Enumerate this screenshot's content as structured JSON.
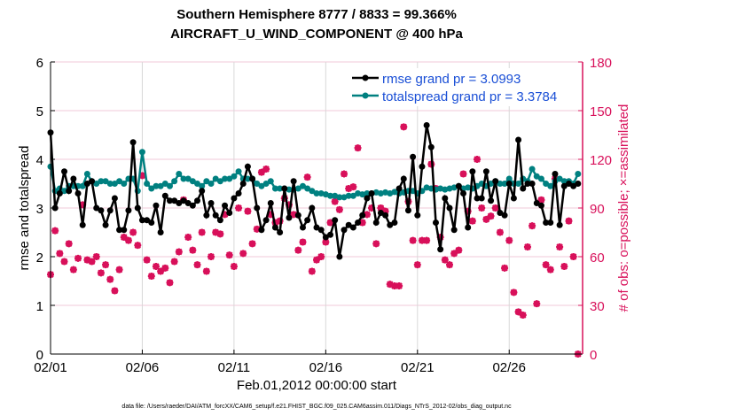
{
  "chart_data": {
    "type": "line",
    "title": [
      "Southern Hemisphere 8777 / 8833 = 99.366%",
      "AIRCRAFT_U_WIND_COMPONENT @ 400 hPa"
    ],
    "xlabel": "Feb.01,2012 00:00:00 start",
    "ylabel": "rmse and totalspread",
    "ylabel_right": "# of obs: o=possible; ×=assimilated",
    "footer": "data file: /Users/raeder/DAI/ATM_forcXX/CAM6_setup/f.e21.FHIST_BGC.f09_025.CAM6assim.011/Diags_NTrS_2012-02/obs_diag_output.nc",
    "xlim_days": [
      0,
      29
    ],
    "xticks": [
      "02/01",
      "02/06",
      "02/11",
      "02/16",
      "02/21",
      "02/26"
    ],
    "xtick_days": [
      0,
      5,
      10,
      15,
      20,
      25
    ],
    "ylim": [
      0,
      6
    ],
    "yticks": [
      "0",
      "1",
      "2",
      "3",
      "4",
      "5",
      "6"
    ],
    "ylim_right": [
      0,
      180
    ],
    "yticks_right": [
      "0",
      "30",
      "60",
      "90",
      "120",
      "150",
      "180"
    ],
    "grid": true,
    "legend_placement": "top-right",
    "time_step_days": 0.25,
    "colors": {
      "rmse": "#000000",
      "totalspread": "#008080",
      "obs": "#d8105a"
    },
    "series": [
      {
        "name": "rmse grand pr = 3.0993",
        "values": [
          4.55,
          3.0,
          3.3,
          3.75,
          3.35,
          3.6,
          3.3,
          2.65,
          3.5,
          3.55,
          3.0,
          2.95,
          2.65,
          2.95,
          3.2,
          2.55,
          2.55,
          2.95,
          4.35,
          3.0,
          2.75,
          2.75,
          2.7,
          3.05,
          2.5,
          3.25,
          3.15,
          3.15,
          3.1,
          3.15,
          3.1,
          3.05,
          3.15,
          3.35,
          2.85,
          3.1,
          2.85,
          2.75,
          3.05,
          2.9,
          3.2,
          3.3,
          3.5,
          3.85,
          3.6,
          3.0,
          2.55,
          2.75,
          3.1,
          2.6,
          2.5,
          3.4,
          2.8,
          3.55,
          2.85,
          2.6,
          2.75,
          3.0,
          2.6,
          2.55,
          2.4,
          2.45,
          2.75,
          2.0,
          2.55,
          2.65,
          2.6,
          2.7,
          2.85,
          3.2,
          3.3,
          2.7,
          2.9,
          2.85,
          2.65,
          2.7,
          3.4,
          3.6,
          2.95,
          4.05,
          2.85,
          3.85,
          4.7,
          4.25,
          2.7,
          2.15,
          3.2,
          3.0,
          2.55,
          3.45,
          3.3,
          2.6,
          3.75,
          3.2,
          3.2,
          3.75,
          3.15,
          3.55,
          2.9,
          2.85,
          3.5,
          3.2,
          4.4,
          3.4,
          3.5,
          3.5,
          3.1,
          3.05,
          2.7,
          2.7,
          3.7,
          2.65,
          3.45,
          3.5,
          3.45,
          3.5
        ]
      },
      {
        "name": "totalspread grand pr = 3.3784",
        "values": [
          3.85,
          3.35,
          3.4,
          3.35,
          3.45,
          3.45,
          3.45,
          3.45,
          3.7,
          3.55,
          3.5,
          3.55,
          3.55,
          3.5,
          3.5,
          3.55,
          3.5,
          3.6,
          3.6,
          3.35,
          4.15,
          3.5,
          3.4,
          3.45,
          3.45,
          3.5,
          3.45,
          3.55,
          3.7,
          3.6,
          3.6,
          3.55,
          3.5,
          3.45,
          3.55,
          3.5,
          3.6,
          3.55,
          3.6,
          3.6,
          3.65,
          3.75,
          3.6,
          3.6,
          3.6,
          3.5,
          3.45,
          3.5,
          3.55,
          3.4,
          3.4,
          3.4,
          3.38,
          3.38,
          3.4,
          3.45,
          3.4,
          3.35,
          3.3,
          3.3,
          3.28,
          3.25,
          3.25,
          3.22,
          3.22,
          3.25,
          3.25,
          3.3,
          3.28,
          3.3,
          3.3,
          3.32,
          3.3,
          3.32,
          3.3,
          3.33,
          3.3,
          3.32,
          3.35,
          3.35,
          3.3,
          3.35,
          3.42,
          3.4,
          3.38,
          3.4,
          3.38,
          3.4,
          3.42,
          3.45,
          3.4,
          3.42,
          3.4,
          3.45,
          3.5,
          3.45,
          3.5,
          3.55,
          3.5,
          3.5,
          3.6,
          3.5,
          3.5,
          3.6,
          3.55,
          3.8,
          3.65,
          3.6,
          3.5,
          3.45,
          3.55,
          3.6,
          3.55,
          3.55,
          3.5,
          3.7
        ]
      },
      {
        "name": "obs possible",
        "values": [
          49,
          76,
          62,
          57,
          68,
          52,
          59,
          92,
          58,
          57,
          60,
          50,
          55,
          46,
          39,
          52,
          72,
          70,
          75,
          67,
          110,
          58,
          48,
          54,
          51,
          53,
          44,
          57,
          63,
          95,
          72,
          64,
          55,
          75,
          51,
          60,
          75,
          74,
          86,
          61,
          54,
          90,
          62,
          88,
          68,
          77,
          112,
          114,
          86,
          81,
          82,
          96,
          92,
          86,
          64,
          69,
          109,
          51,
          58,
          60,
          69,
          81,
          94,
          89,
          111,
          102,
          103,
          127,
          81,
          86,
          90,
          68,
          90,
          88,
          43,
          42,
          42,
          140,
          94,
          70,
          55,
          70,
          70,
          117,
          102,
          72,
          58,
          55,
          62,
          64,
          111,
          88,
          82,
          120,
          90,
          83,
          85,
          90,
          75,
          53,
          70,
          38,
          26,
          24,
          66,
          79,
          31,
          95,
          55,
          52,
          108,
          66,
          54,
          82,
          60,
          0
        ]
      },
      {
        "name": "obs assimilated",
        "values": [
          49,
          76,
          62,
          57,
          68,
          52,
          59,
          92,
          58,
          57,
          60,
          50,
          55,
          46,
          39,
          52,
          72,
          70,
          75,
          67,
          110,
          58,
          48,
          54,
          51,
          53,
          44,
          57,
          63,
          95,
          72,
          64,
          55,
          75,
          51,
          60,
          75,
          74,
          86,
          61,
          54,
          90,
          62,
          88,
          68,
          77,
          112,
          114,
          86,
          81,
          82,
          96,
          92,
          86,
          64,
          69,
          109,
          51,
          58,
          60,
          69,
          81,
          94,
          89,
          111,
          102,
          103,
          127,
          81,
          86,
          90,
          68,
          90,
          88,
          43,
          42,
          42,
          140,
          94,
          70,
          55,
          70,
          70,
          117,
          102,
          72,
          58,
          55,
          62,
          64,
          111,
          88,
          82,
          120,
          90,
          83,
          85,
          90,
          75,
          53,
          70,
          38,
          26,
          24,
          66,
          79,
          31,
          95,
          55,
          52,
          108,
          66,
          54,
          82,
          60,
          0
        ]
      }
    ]
  }
}
